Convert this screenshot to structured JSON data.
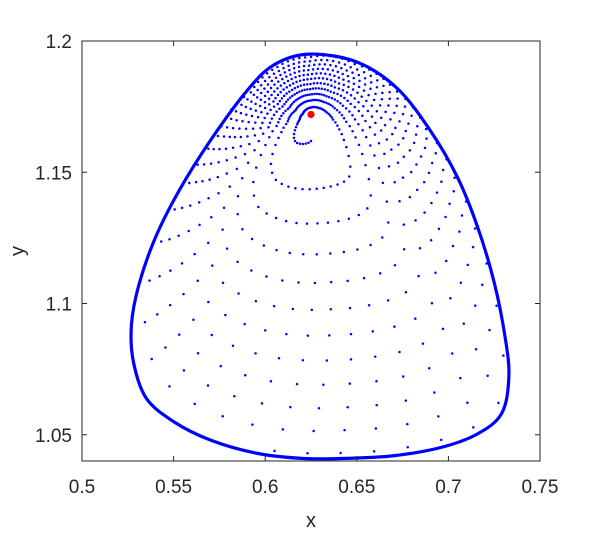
{
  "chart_data": {
    "type": "scatter",
    "title": "",
    "xlabel": "x",
    "ylabel": "y",
    "xlim": [
      0.5,
      0.75
    ],
    "ylim": [
      1.04,
      1.2
    ],
    "xticks": [
      0.5,
      0.55,
      0.6,
      0.65,
      0.7,
      0.75
    ],
    "yticks": [
      1.05,
      1.1,
      1.15,
      1.2
    ],
    "xtick_labels": [
      "0.5",
      "0.55",
      "0.6",
      "0.65",
      "0.7",
      "0.75"
    ],
    "ytick_labels": [
      "1.05",
      "1.1",
      "1.15",
      "1.2"
    ],
    "grid": false,
    "colors": {
      "orbit": "#0000ff",
      "fixed_point": "#ff0000",
      "axes": "#262626"
    },
    "series": [
      {
        "kind": "limit-cycle-boundary",
        "points": [
          [
            0.624,
            1.195
          ],
          [
            0.65,
            1.192
          ],
          [
            0.672,
            1.182
          ],
          [
            0.69,
            1.166
          ],
          [
            0.705,
            1.148
          ],
          [
            0.716,
            1.129
          ],
          [
            0.725,
            1.108
          ],
          [
            0.731,
            1.087
          ],
          [
            0.733,
            1.072
          ],
          [
            0.729,
            1.058
          ],
          [
            0.715,
            1.05
          ],
          [
            0.695,
            1.045
          ],
          [
            0.67,
            1.042
          ],
          [
            0.645,
            1.041
          ],
          [
            0.62,
            1.041
          ],
          [
            0.595,
            1.043
          ],
          [
            0.57,
            1.048
          ],
          [
            0.55,
            1.055
          ],
          [
            0.535,
            1.064
          ],
          [
            0.528,
            1.078
          ],
          [
            0.527,
            1.092
          ],
          [
            0.531,
            1.107
          ],
          [
            0.54,
            1.125
          ],
          [
            0.553,
            1.143
          ],
          [
            0.57,
            1.162
          ],
          [
            0.59,
            1.181
          ],
          [
            0.605,
            1.191
          ]
        ]
      },
      {
        "kind": "spiral-trajectory",
        "center": [
          0.625,
          1.171
        ],
        "start_radius_fraction": 0.07,
        "turns": 11,
        "points_per_turn": 64
      },
      {
        "kind": "fixed-point",
        "points": [
          [
            0.625,
            1.172
          ]
        ]
      }
    ]
  }
}
